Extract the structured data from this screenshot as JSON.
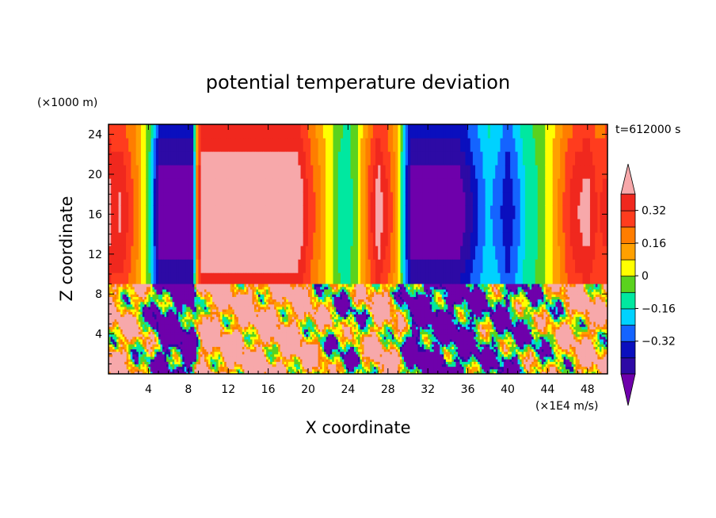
{
  "chart_data": {
    "type": "heatmap",
    "title": "potential temperature deviation",
    "xlabel": "X coordinate",
    "ylabel": "Z coordinate",
    "x_units": "(×1E4 m/s)",
    "y_units": "(×1000 m)",
    "time_label": "t=612000 s",
    "xlim": [
      0,
      50
    ],
    "ylim": [
      0,
      25
    ],
    "x_ticks": [
      {
        "value": 4,
        "label": "4"
      },
      {
        "value": 8,
        "label": "8"
      },
      {
        "value": 12,
        "label": "12"
      },
      {
        "value": 16,
        "label": "16"
      },
      {
        "value": 20,
        "label": "20"
      },
      {
        "value": 24,
        "label": "24"
      },
      {
        "value": 28,
        "label": "28"
      },
      {
        "value": 32,
        "label": "32"
      },
      {
        "value": 36,
        "label": "36"
      },
      {
        "value": 40,
        "label": "40"
      },
      {
        "value": 44,
        "label": "44"
      },
      {
        "value": 48,
        "label": "48"
      }
    ],
    "y_ticks": [
      {
        "value": 4,
        "label": "4"
      },
      {
        "value": 8,
        "label": "8"
      },
      {
        "value": 12,
        "label": "12"
      },
      {
        "value": 16,
        "label": "16"
      },
      {
        "value": 20,
        "label": "20"
      },
      {
        "value": 24,
        "label": "24"
      }
    ],
    "colorbar": {
      "levels": [
        -0.48,
        -0.4,
        -0.32,
        -0.24,
        -0.16,
        -0.08,
        0,
        0.08,
        0.16,
        0.24,
        0.32,
        0.4
      ],
      "labels": [
        {
          "value": 0.32,
          "label": "0.32"
        },
        {
          "value": 0.16,
          "label": "0.16"
        },
        {
          "value": 0,
          "label": "0"
        },
        {
          "value": -0.16,
          "label": "−0.16"
        },
        {
          "value": -0.32,
          "label": "−0.32"
        }
      ],
      "colors_low_to_high": [
        "#6e00ab",
        "#2d0aa5",
        "#0a0fbe",
        "#1464ff",
        "#00d2ff",
        "#00e8a0",
        "#5ad21e",
        "#ffff00",
        "#ffa000",
        "#ff7d00",
        "#ff3c1e",
        "#f0281e",
        "#f7a8aa"
      ],
      "extend": "both"
    },
    "upper_layer": {
      "z_range": [
        8.8,
        25
      ],
      "x_profile": [
        {
          "x": 0.0,
          "v": 0.42
        },
        {
          "x": 0.5,
          "v": 0.34
        },
        {
          "x": 1.2,
          "v": 0.38
        },
        {
          "x": 2.0,
          "v": 0.28
        },
        {
          "x": 2.7,
          "v": 0.2
        },
        {
          "x": 3.2,
          "v": 0.1
        },
        {
          "x": 3.7,
          "v": 0.02
        },
        {
          "x": 4.1,
          "v": -0.08
        },
        {
          "x": 4.6,
          "v": -0.3
        },
        {
          "x": 5.1,
          "v": -0.5
        },
        {
          "x": 8.4,
          "v": -0.5
        },
        {
          "x": 8.9,
          "v": 0.2
        },
        {
          "x": 9.3,
          "v": 0.45
        },
        {
          "x": 19.0,
          "v": 0.45
        },
        {
          "x": 20.0,
          "v": 0.3
        },
        {
          "x": 21.0,
          "v": 0.18
        },
        {
          "x": 22.0,
          "v": 0.05
        },
        {
          "x": 23.0,
          "v": -0.08
        },
        {
          "x": 24.0,
          "v": -0.14
        },
        {
          "x": 25.0,
          "v": 0.02
        },
        {
          "x": 26.0,
          "v": 0.22
        },
        {
          "x": 27.0,
          "v": 0.42
        },
        {
          "x": 28.0,
          "v": 0.3
        },
        {
          "x": 29.0,
          "v": 0.1
        },
        {
          "x": 29.8,
          "v": -0.3
        },
        {
          "x": 30.3,
          "v": -0.5
        },
        {
          "x": 35.0,
          "v": -0.5
        },
        {
          "x": 36.0,
          "v": -0.42
        },
        {
          "x": 37.0,
          "v": -0.3
        },
        {
          "x": 38.0,
          "v": -0.2
        },
        {
          "x": 39.0,
          "v": -0.25
        },
        {
          "x": 40.0,
          "v": -0.36
        },
        {
          "x": 41.0,
          "v": -0.25
        },
        {
          "x": 42.0,
          "v": -0.12
        },
        {
          "x": 43.0,
          "v": -0.08
        },
        {
          "x": 44.0,
          "v": 0.02
        },
        {
          "x": 45.0,
          "v": 0.14
        },
        {
          "x": 46.0,
          "v": 0.28
        },
        {
          "x": 47.0,
          "v": 0.36
        },
        {
          "x": 48.0,
          "v": 0.4
        },
        {
          "x": 49.0,
          "v": 0.28
        },
        {
          "x": 50.0,
          "v": 0.32
        }
      ]
    },
    "lower_layer": {
      "z_range": [
        0,
        8.8
      ],
      "description_values": "turbulent mix of all colorbar levels, dominated by -0.48 (purple) and >0.4 (pink)"
    }
  }
}
